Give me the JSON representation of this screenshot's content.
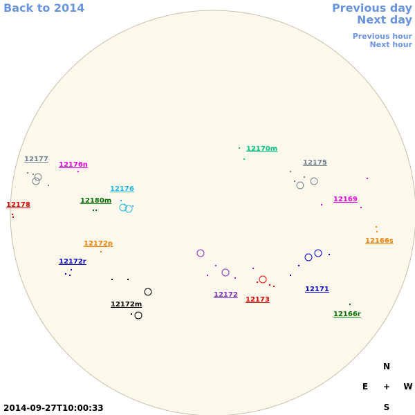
{
  "nav": {
    "back": "Back to 2014",
    "previous_day": "Previous day",
    "next_day": "Next day",
    "previous_hour": "Previous hour",
    "next_hour": "Next hour"
  },
  "regions": [
    {
      "label": "12177",
      "color": "#708090"
    },
    {
      "label": "12176n",
      "color": "#e000e0"
    },
    {
      "label": "12176",
      "color": "#20b8e0"
    },
    {
      "label": "12178",
      "color": "#e00000"
    },
    {
      "label": "12180m",
      "color": "#007000"
    },
    {
      "label": "12172p",
      "color": "#f08000"
    },
    {
      "label": "12172r",
      "color": "#0000c0"
    },
    {
      "label": "12172m",
      "color": "#000000"
    },
    {
      "label": "12170m",
      "color": "#00c080"
    },
    {
      "label": "12175",
      "color": "#708090"
    },
    {
      "label": "12169",
      "color": "#e000e0"
    },
    {
      "label": "12166s",
      "color": "#f08000"
    },
    {
      "label": "12172",
      "color": "#8030c0"
    },
    {
      "label": "12173",
      "color": "#e00000"
    },
    {
      "label": "12171",
      "color": "#0000c0"
    },
    {
      "label": "12166r",
      "color": "#007000"
    }
  ],
  "compass": {
    "north": "N",
    "east": "E",
    "center": "+",
    "west": "W",
    "south": "S"
  },
  "timestamp": "2014-09-27T10:00:33"
}
